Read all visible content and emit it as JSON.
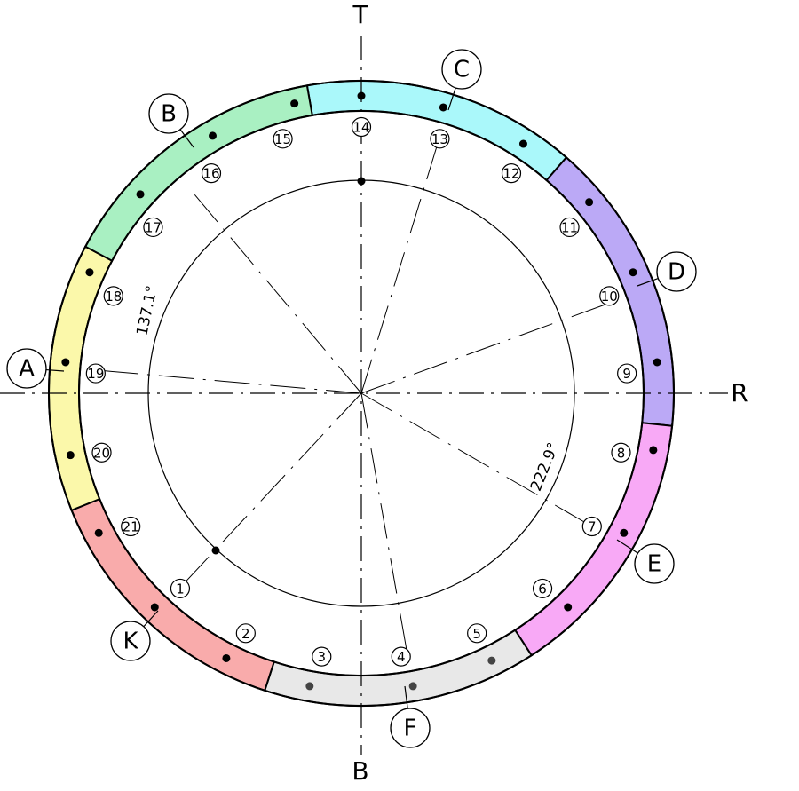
{
  "axis_labels": {
    "top": "T",
    "right": "R",
    "bottom": "B"
  },
  "segment_labels": [
    "A",
    "B",
    "C",
    "D",
    "E",
    "F",
    "K"
  ],
  "positions": [
    1,
    2,
    3,
    4,
    5,
    6,
    7,
    8,
    9,
    10,
    11,
    12,
    13,
    14,
    15,
    16,
    17,
    18,
    19,
    20,
    21
  ],
  "angles": [
    "137.1°",
    "222.9°"
  ]
}
